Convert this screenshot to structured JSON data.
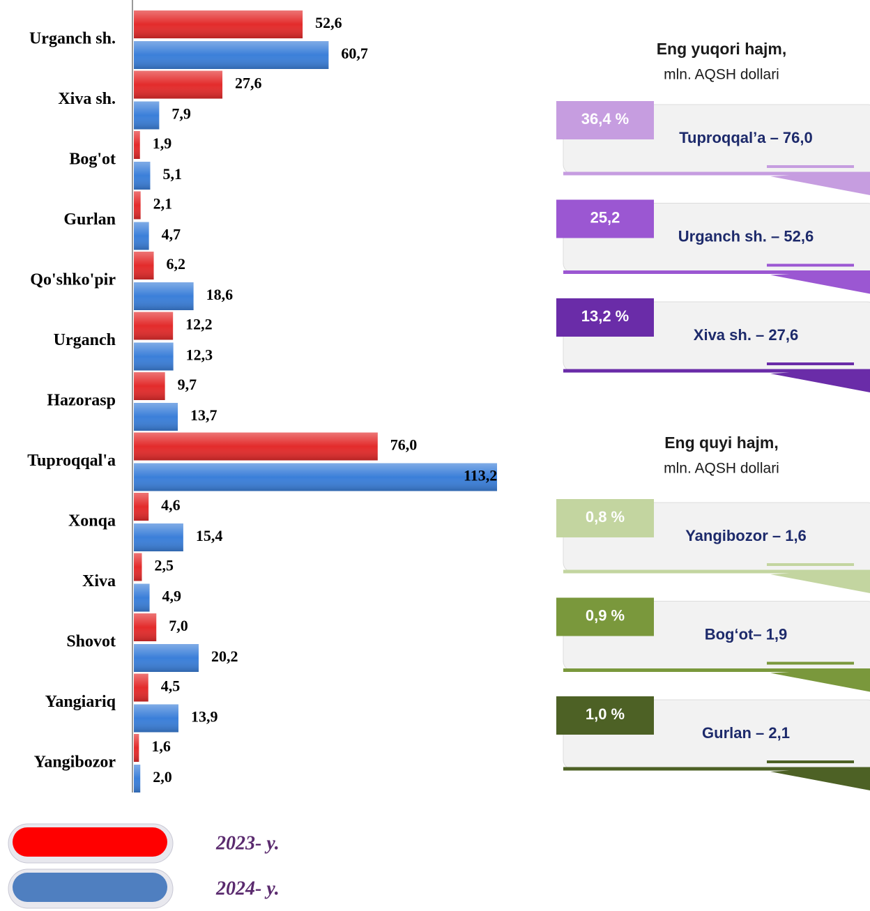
{
  "chart_data": {
    "type": "bar",
    "orientation": "horizontal",
    "categories": [
      "Urganch sh.",
      "Xiva sh.",
      "Bog'ot",
      "Gurlan",
      "Qo'shko'pir",
      "Urganch",
      "Hazorasp",
      "Tuproqqal'a",
      "Xonqa",
      "Xiva",
      "Shovot",
      "Yangiariq",
      "Yangibozor"
    ],
    "series": [
      {
        "name": "2023- y.",
        "color": "#e32b2b",
        "values": [
          52.6,
          27.6,
          1.9,
          2.1,
          6.2,
          12.2,
          9.7,
          76.0,
          4.6,
          2.5,
          7.0,
          4.5,
          1.6
        ],
        "value_labels": [
          "52,6",
          "27,6",
          "1,9",
          "2,1",
          "6,2",
          "12,2",
          "9,7",
          "76,0",
          "4,6",
          "2,5",
          "7,0",
          "4,5",
          "1,6"
        ]
      },
      {
        "name": "2024- y.",
        "color": "#3b7fd9",
        "values": [
          60.7,
          7.9,
          5.1,
          4.7,
          18.6,
          12.3,
          13.7,
          113.2,
          15.4,
          4.9,
          20.2,
          13.9,
          2.0
        ],
        "value_labels": [
          "60,7",
          "7,9",
          "5,1",
          "4,7",
          "18,6",
          "12,3",
          "13,7",
          "113,2",
          "15,4",
          "4,9",
          "20,2",
          "13,9",
          "2,0"
        ]
      }
    ]
  },
  "panels": [
    {
      "title": "Eng yuqori hajm,",
      "subtitle": "mln. AQSH dollari",
      "items": [
        {
          "percent": "36,4 %",
          "label": "Tuproqqal’a – 76,0",
          "color": "#c69de0"
        },
        {
          "percent": "25,2",
          "label": "Urganch sh. – 52,6",
          "color": "#9b57d2"
        },
        {
          "percent": "13,2 %",
          "label": "Xiva sh. – 27,6",
          "color": "#6a2ca8"
        }
      ]
    },
    {
      "title": "Eng quyi hajm,",
      "subtitle": "mln. AQSH dollari",
      "items": [
        {
          "percent": "0,8 %",
          "label": "Yangibozor – 1,6",
          "color": "#c3d5a0"
        },
        {
          "percent": "0,9 %",
          "label": "Bog‘ot– 1,9",
          "color": "#7a983c"
        },
        {
          "percent": "1,0 %",
          "label": "Gurlan – 2,1",
          "color": "#4d6125"
        }
      ]
    }
  ]
}
